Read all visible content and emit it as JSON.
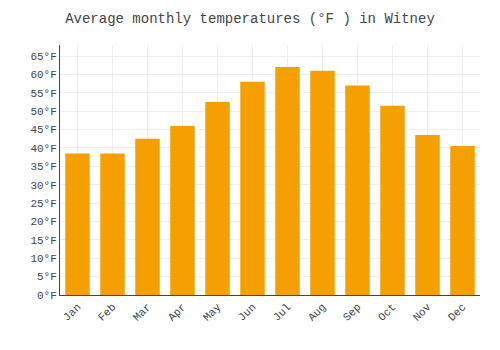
{
  "chart_data": {
    "type": "bar",
    "title": "Average monthly temperatures (°F ) in Witney",
    "categories": [
      "Jan",
      "Feb",
      "Mar",
      "Apr",
      "May",
      "Jun",
      "Jul",
      "Aug",
      "Sep",
      "Oct",
      "Nov",
      "Dec"
    ],
    "values": [
      38.5,
      38.5,
      42.5,
      46.0,
      52.5,
      58.0,
      62.0,
      61.0,
      57.0,
      51.5,
      43.5,
      40.5
    ],
    "color": "#F5A000",
    "ylim": [
      0,
      68
    ],
    "yticks": [
      {
        "value": 0,
        "label": "0°F"
      },
      {
        "value": 5,
        "label": "5°F"
      },
      {
        "value": 10,
        "label": "10°F"
      },
      {
        "value": 15,
        "label": "15°F"
      },
      {
        "value": 20,
        "label": "20°F"
      },
      {
        "value": 25,
        "label": "25°F"
      },
      {
        "value": 30,
        "label": "30°F"
      },
      {
        "value": 35,
        "label": "35°F"
      },
      {
        "value": 40,
        "label": "40°F"
      },
      {
        "value": 45,
        "label": "45°F"
      },
      {
        "value": 50,
        "label": "50°F"
      },
      {
        "value": 55,
        "label": "55°F"
      },
      {
        "value": 60,
        "label": "60°F"
      },
      {
        "value": 65,
        "label": "65°F"
      }
    ],
    "grid": true
  }
}
